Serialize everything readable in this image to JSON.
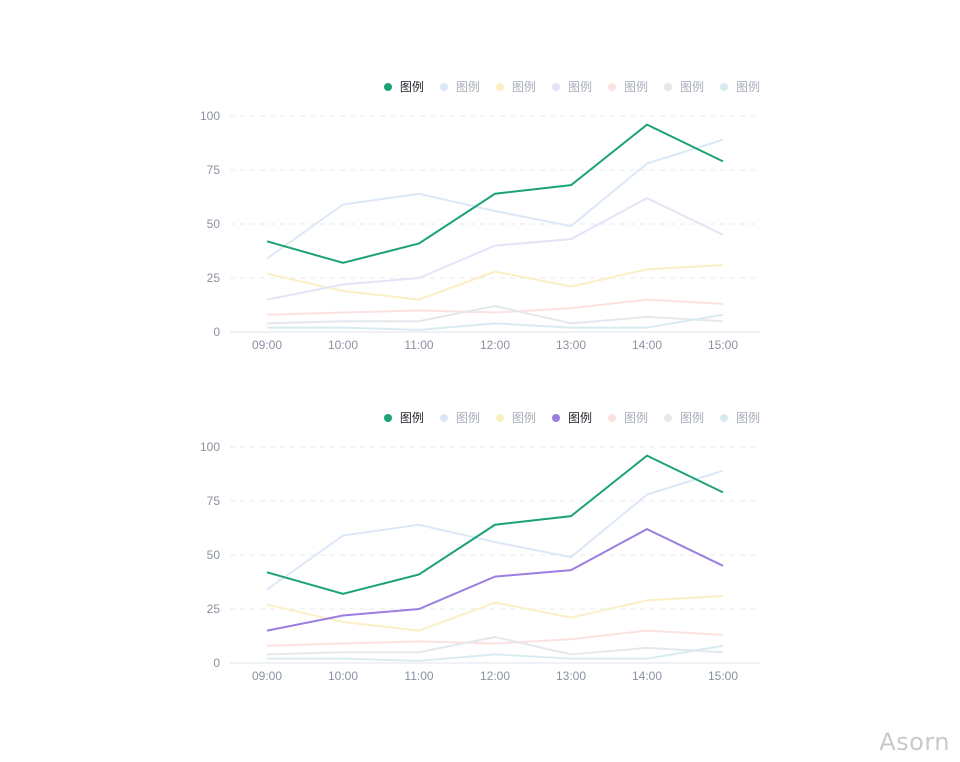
{
  "chart_data": [
    {
      "type": "line",
      "categories": [
        "09:00",
        "10:00",
        "11:00",
        "12:00",
        "13:00",
        "14:00",
        "15:00"
      ],
      "yticks": [
        0,
        25,
        50,
        75,
        100
      ],
      "ylim": [
        0,
        100
      ],
      "grid": true,
      "legend_position": "top-right",
      "series": [
        {
          "name": "图例",
          "color": "#1ba373",
          "active": true,
          "values": [
            42,
            32,
            41,
            64,
            68,
            96,
            79
          ]
        },
        {
          "name": "图例",
          "color": "#dce8f7",
          "active": false,
          "values": [
            34,
            59,
            64,
            56,
            49,
            78,
            89
          ]
        },
        {
          "name": "图例",
          "color": "#fbefc6",
          "active": false,
          "values": [
            27,
            19,
            15,
            28,
            21,
            29,
            31
          ]
        },
        {
          "name": "图例",
          "color": "#e3e4f7",
          "active": false,
          "values": [
            15,
            22,
            25,
            40,
            43,
            62,
            45
          ]
        },
        {
          "name": "图例",
          "color": "#fbe2e1",
          "active": false,
          "values": [
            8,
            9,
            10,
            9,
            11,
            15,
            13
          ]
        },
        {
          "name": "图例",
          "color": "#e4e8ed",
          "active": false,
          "values": [
            4,
            5,
            5,
            12,
            4,
            7,
            5
          ]
        },
        {
          "name": "图例",
          "color": "#d8ecf0",
          "active": false,
          "values": [
            2,
            2,
            1,
            4,
            2,
            2,
            8
          ]
        }
      ]
    },
    {
      "type": "line",
      "categories": [
        "09:00",
        "10:00",
        "11:00",
        "12:00",
        "13:00",
        "14:00",
        "15:00"
      ],
      "yticks": [
        0,
        25,
        50,
        75,
        100
      ],
      "ylim": [
        0,
        100
      ],
      "grid": true,
      "legend_position": "top-right",
      "series": [
        {
          "name": "图例",
          "color": "#1ba373",
          "active": true,
          "values": [
            42,
            32,
            41,
            64,
            68,
            96,
            79
          ]
        },
        {
          "name": "图例",
          "color": "#dce8f7",
          "active": false,
          "values": [
            34,
            59,
            64,
            56,
            49,
            78,
            89
          ]
        },
        {
          "name": "图例",
          "color": "#fbefc6",
          "active": false,
          "values": [
            27,
            19,
            15,
            28,
            21,
            29,
            31
          ]
        },
        {
          "name": "图例",
          "color": "#9b7ee0",
          "active": true,
          "values": [
            15,
            22,
            25,
            40,
            43,
            62,
            45
          ]
        },
        {
          "name": "图例",
          "color": "#fbe2e1",
          "active": false,
          "values": [
            8,
            9,
            10,
            9,
            11,
            15,
            13
          ]
        },
        {
          "name": "图例",
          "color": "#e4e8ed",
          "active": false,
          "values": [
            4,
            5,
            5,
            12,
            4,
            7,
            5
          ]
        },
        {
          "name": "图例",
          "color": "#d8ecf0",
          "active": false,
          "values": [
            2,
            2,
            1,
            4,
            2,
            2,
            8
          ]
        }
      ]
    }
  ],
  "watermark": "Asorn",
  "colors": {
    "axis_text": "#8a919f",
    "grid": "#e6e8eb",
    "axis_line": "#dfe3ea"
  }
}
